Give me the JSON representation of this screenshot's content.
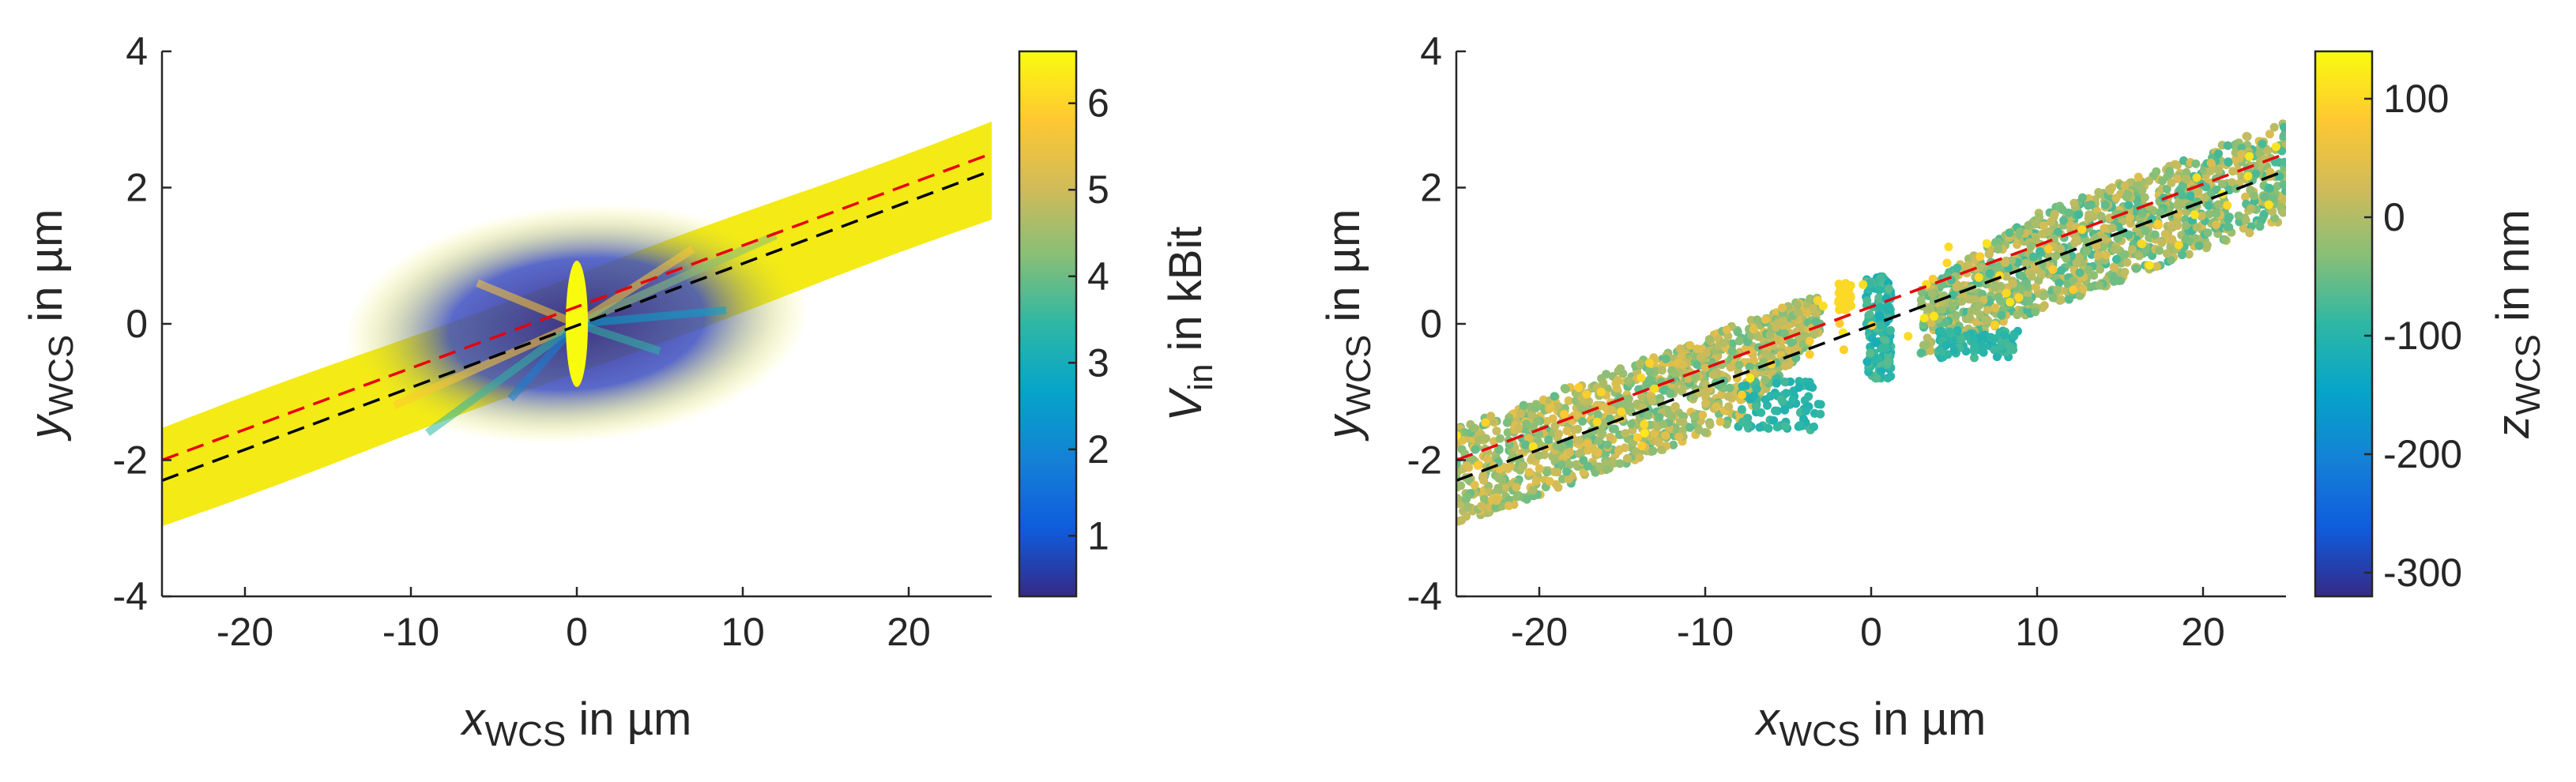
{
  "chart_data": [
    {
      "type": "scatter",
      "panel": "left",
      "xlabel": {
        "var": "x",
        "sub": "WCS",
        "unit": " in µm"
      },
      "ylabel": {
        "var": "y",
        "sub": "WCS",
        "unit": " in µm"
      },
      "xlim": [
        -25,
        25
      ],
      "ylim": [
        -4,
        4
      ],
      "xticks": [
        -20,
        -10,
        0,
        10,
        20
      ],
      "yticks": [
        -4,
        -2,
        0,
        2,
        4
      ],
      "xtick_labels": [
        "-20",
        "-10",
        "0",
        "10",
        "20"
      ],
      "ytick_labels": [
        "-4",
        "-2",
        "0",
        "2",
        "4"
      ],
      "grid": false,
      "colorbar": {
        "label": {
          "var": "V",
          "sub": "in",
          "unit": " in kBit"
        },
        "range": [
          0.3,
          6.6
        ],
        "ticks": [
          1,
          2,
          3,
          4,
          5,
          6
        ],
        "tick_labels": [
          "1",
          "2",
          "3",
          "4",
          "5",
          "6"
        ]
      },
      "band": {
        "center_slope": 0.09,
        "center_intercept": 0.0,
        "half_width": 0.72
      },
      "series": [
        {
          "name": "red dashed line",
          "color": "#e8000b",
          "style": "dashed",
          "x": [
            -25,
            25
          ],
          "y": [
            -2.0,
            2.5
          ]
        },
        {
          "name": "black dashed line",
          "color": "#000000",
          "style": "dashed",
          "x": [
            -25,
            25
          ],
          "y": [
            -2.3,
            2.25
          ]
        }
      ]
    },
    {
      "type": "scatter",
      "panel": "right",
      "xlabel": {
        "var": "x",
        "sub": "WCS",
        "unit": " in µm"
      },
      "ylabel": {
        "var": "y",
        "sub": "WCS",
        "unit": " in µm"
      },
      "xlim": [
        -25,
        25
      ],
      "ylim": [
        -4,
        4
      ],
      "xticks": [
        -20,
        -10,
        0,
        10,
        20
      ],
      "yticks": [
        -4,
        -2,
        0,
        2,
        4
      ],
      "xtick_labels": [
        "-20",
        "-10",
        "0",
        "10",
        "20"
      ],
      "ytick_labels": [
        "-4",
        "-2",
        "0",
        "2",
        "4"
      ],
      "grid": false,
      "colorbar": {
        "label": {
          "var": "z",
          "sub": "WCS",
          "unit": " in nm"
        },
        "range": [
          -320,
          140
        ],
        "ticks": [
          -300,
          -200,
          -100,
          0,
          100
        ],
        "tick_labels": [
          "-300",
          "-200",
          "-100",
          "0",
          "100"
        ]
      },
      "band": {
        "center_slope": 0.09,
        "center_intercept": 0.0,
        "half_width": 0.72
      },
      "series": [
        {
          "name": "red dashed line",
          "color": "#e8000b",
          "style": "dashed",
          "x": [
            -25,
            25
          ],
          "y": [
            -2.0,
            2.5
          ]
        },
        {
          "name": "black dashed line",
          "color": "#000000",
          "style": "dashed",
          "x": [
            -25,
            25
          ],
          "y": [
            -2.3,
            2.25
          ]
        }
      ]
    }
  ],
  "colormap": [
    "#352a87",
    "#0f5cdd",
    "#1481d6",
    "#06a4ca",
    "#2eb7a4",
    "#87bf77",
    "#d1bb59",
    "#fec832",
    "#f9fb0e"
  ]
}
